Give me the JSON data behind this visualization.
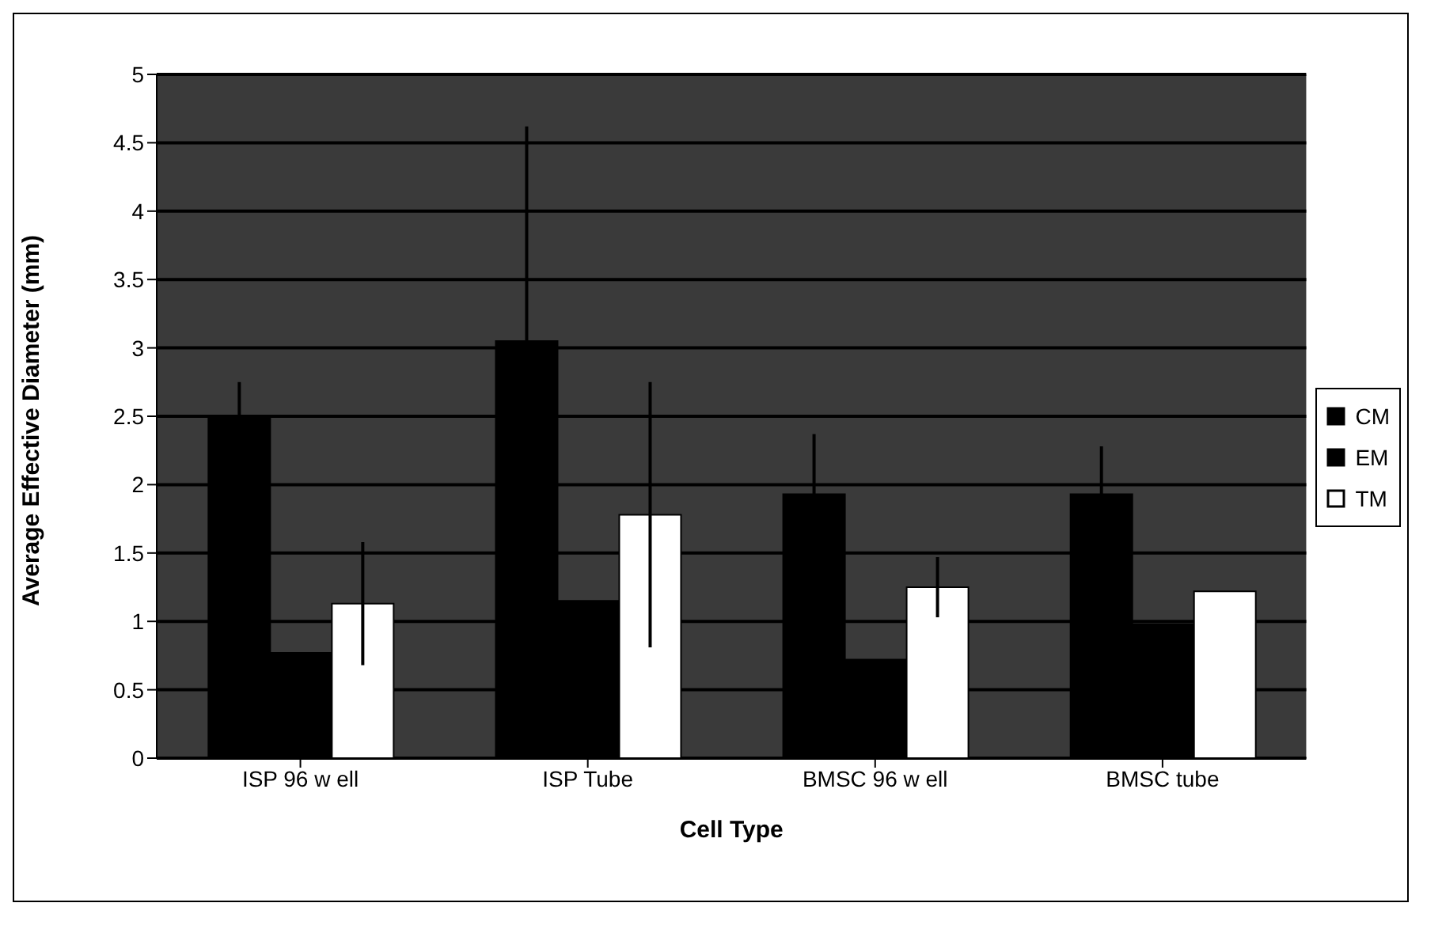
{
  "chart_data": {
    "type": "bar",
    "xlabel": "Cell Type",
    "ylabel": "Average Effective Diameter (mm)",
    "categories": [
      "ISP 96 w ell",
      "ISP Tube",
      "BMSC 96 w ell",
      "BMSC tube"
    ],
    "series": [
      {
        "name": "CM",
        "color": "#000000",
        "values": [
          2.5,
          3.05,
          1.93,
          1.93
        ],
        "errors": [
          0.25,
          1.57,
          0.44,
          0.35
        ]
      },
      {
        "name": "EM",
        "color": "#000000",
        "values": [
          0.77,
          1.15,
          0.72,
          0.98
        ],
        "errors": [
          null,
          null,
          null,
          null
        ]
      },
      {
        "name": "TM",
        "color": "#ffffff",
        "values": [
          1.13,
          1.78,
          1.25,
          1.22
        ],
        "errors": [
          0.45,
          0.97,
          0.22,
          null
        ]
      }
    ],
    "ylim": [
      0,
      5
    ],
    "yticks": [
      0,
      0.5,
      1,
      1.5,
      2,
      2.5,
      3,
      3.5,
      4,
      4.5,
      5
    ],
    "grid": "y",
    "legend": "right"
  }
}
